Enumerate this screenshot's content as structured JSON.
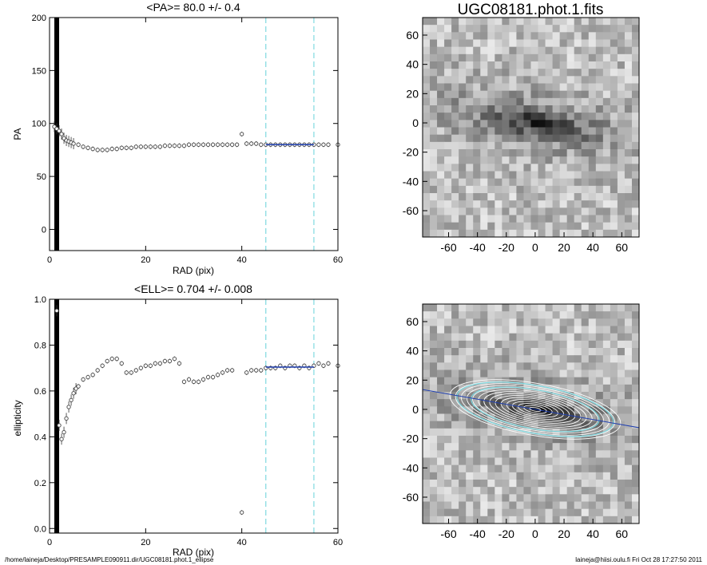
{
  "window_title": "UGC08181.phot.1.fits",
  "footer": {
    "path": "/home/laineja/Desktop/PRESAMPLE090911.dir/UGC08181.phot.1_ellipse",
    "stamp": "laineja@hiisi.oulu.fi  Fri Oct 28 17:27:50 2011"
  },
  "colors": {
    "marker": "#444444",
    "fit": "#1f3fb0",
    "cut": "#7fd9e0",
    "bar": "#000000"
  },
  "chart_data": [
    {
      "type": "scatter",
      "title": "<PA>=  80.0 +/-   0.4",
      "xlabel": "RAD (pix)",
      "ylabel": "PA",
      "xlim": [
        0,
        60
      ],
      "ylim": [
        -20,
        200
      ],
      "xticks": [
        "0",
        "20",
        "40",
        "60"
      ],
      "yticks": [
        "0",
        "50",
        "100",
        "150",
        "200"
      ],
      "cut_lines_x": [
        45,
        55
      ],
      "x": [
        1,
        1.5,
        2,
        2.5,
        3,
        3.5,
        4,
        4.5,
        5,
        6,
        7,
        8,
        9,
        10,
        11,
        12,
        13,
        14,
        15,
        16,
        17,
        18,
        19,
        20,
        21,
        22,
        23,
        24,
        25,
        26,
        27,
        28,
        29,
        30,
        31,
        32,
        33,
        34,
        35,
        36,
        37,
        38,
        39,
        40,
        41,
        42,
        43,
        44,
        45,
        46,
        47,
        48,
        49,
        50,
        51,
        52,
        53,
        54,
        55,
        56,
        57,
        58,
        60
      ],
      "values": [
        97,
        95,
        93,
        90,
        86,
        84,
        83,
        82,
        81,
        80,
        78,
        77,
        76,
        75,
        75,
        75,
        76,
        76,
        77,
        77,
        77,
        78,
        78,
        78,
        78,
        78,
        78,
        79,
        79,
        79,
        79,
        79,
        80,
        80,
        80,
        80,
        80,
        80,
        80,
        80,
        80,
        80,
        80,
        90,
        81,
        81,
        81,
        80,
        80,
        80,
        80,
        80,
        80,
        80,
        80,
        80,
        80,
        80,
        80,
        80,
        80,
        80,
        80
      ],
      "fit": {
        "x": [
          45,
          55
        ],
        "y": [
          80,
          80
        ]
      }
    },
    {
      "type": "scatter",
      "title": "<ELL>= 0.704 +/-  0.008",
      "xlabel": "RAD (pix)",
      "ylabel": "ellipticity",
      "xlim": [
        0,
        60
      ],
      "ylim": [
        -0.02,
        1.0
      ],
      "xticks": [
        "0",
        "20",
        "40",
        "60"
      ],
      "yticks": [
        "0.0",
        "0.2",
        "0.4",
        "0.6",
        "0.8",
        "1.0"
      ],
      "cut_lines_x": [
        45,
        55
      ],
      "x": [
        1.5,
        2,
        2.5,
        3,
        3.5,
        4,
        4.5,
        5,
        5.5,
        6,
        7,
        8,
        9,
        10,
        11,
        12,
        13,
        14,
        15,
        16,
        17,
        18,
        19,
        20,
        21,
        22,
        23,
        24,
        25,
        26,
        27,
        28,
        29,
        30,
        31,
        32,
        33,
        34,
        35,
        36,
        37,
        38,
        40,
        41,
        42,
        43,
        44,
        45,
        46,
        47,
        48,
        49,
        50,
        51,
        52,
        53,
        54,
        55,
        56,
        57,
        58,
        60
      ],
      "values": [
        0.95,
        0.45,
        0.39,
        0.42,
        0.48,
        0.53,
        0.56,
        0.59,
        0.61,
        0.62,
        0.65,
        0.66,
        0.67,
        0.69,
        0.71,
        0.73,
        0.74,
        0.74,
        0.72,
        0.68,
        0.68,
        0.69,
        0.7,
        0.71,
        0.71,
        0.72,
        0.72,
        0.73,
        0.73,
        0.74,
        0.72,
        0.64,
        0.65,
        0.64,
        0.64,
        0.65,
        0.66,
        0.66,
        0.67,
        0.68,
        0.69,
        0.69,
        0.07,
        0.68,
        0.69,
        0.69,
        0.69,
        0.7,
        0.7,
        0.7,
        0.71,
        0.7,
        0.71,
        0.71,
        0.7,
        0.71,
        0.7,
        0.71,
        0.72,
        0.71,
        0.72,
        0.71
      ],
      "fit": {
        "x": [
          45,
          55
        ],
        "y": [
          0.704,
          0.704
        ]
      }
    },
    {
      "type": "heatmap",
      "title": "UGC08181.phot.1.fits",
      "xlim": [
        -78,
        72
      ],
      "ylim": [
        -78,
        72
      ],
      "xticks": [
        "-60",
        "-40",
        "-20",
        "0",
        "20",
        "40",
        "60"
      ],
      "yticks": [
        "-60",
        "-40",
        "-20",
        "0",
        "20",
        "40",
        "60"
      ],
      "galaxy": {
        "center": [
          0,
          0
        ],
        "pa_deg": 80,
        "ellipticity": 0.704
      }
    },
    {
      "type": "heatmap",
      "title": "",
      "xlim": [
        -78,
        72
      ],
      "ylim": [
        -78,
        72
      ],
      "xticks": [
        "-60",
        "-40",
        "-20",
        "0",
        "20",
        "40",
        "60"
      ],
      "yticks": [
        "-60",
        "-40",
        "-20",
        "0",
        "20",
        "40",
        "60"
      ],
      "overlay": {
        "center": [
          0,
          0
        ],
        "pa_deg": 80,
        "ellipticity": 0.704,
        "ring_semi_major": [
          4,
          8,
          12,
          16,
          20,
          24,
          28,
          32,
          36,
          40,
          44,
          48,
          52,
          56,
          60
        ],
        "cut_semi_major": [
          45,
          55
        ]
      }
    }
  ]
}
